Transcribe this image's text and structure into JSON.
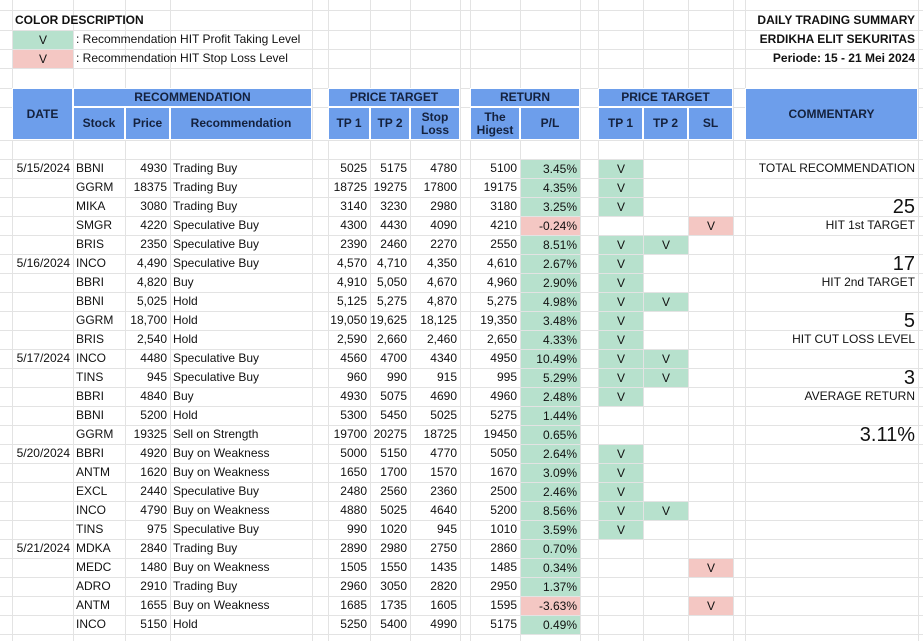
{
  "legend": {
    "title": "COLOR DESCRIPTION",
    "items": [
      {
        "mark": "V",
        "text": ": Recommendation HIT Profit Taking Level"
      },
      {
        "mark": "V",
        "text": ": Recommendation HIT Stop Loss Level"
      }
    ]
  },
  "summary": {
    "title": "DAILY TRADING SUMMARY",
    "company": "ERDIKHA ELIT SEKURITAS",
    "period": "Periode:  15 - 21 Mei 2024"
  },
  "table": {
    "headers": {
      "date": "DATE",
      "recommendation": {
        "title": "RECOMMENDATION",
        "columns": [
          "Stock",
          "Price",
          "Recommendation"
        ]
      },
      "price_target": {
        "title": "PRICE TARGET",
        "columns": [
          "TP 1",
          "TP 2",
          "Stop Loss"
        ]
      },
      "return": {
        "title": "RETURN",
        "columns": [
          "The Higest",
          "P/L"
        ]
      },
      "hit": {
        "title": "PRICE TARGET",
        "columns": [
          "TP 1",
          "TP 2",
          "SL"
        ]
      }
    },
    "rows": [
      {
        "date": "5/15/2024",
        "stock": "BBNI",
        "price": "4930",
        "recommendation": "Trading Buy",
        "tp1": "5025",
        "tp2": "5175",
        "stop": "4780",
        "highest": "5100",
        "pl": "3.45%",
        "hit_tp1": "V"
      },
      {
        "stock": "GGRM",
        "price": "18375",
        "recommendation": "Trading Buy",
        "tp1": "18725",
        "tp2": "19275",
        "stop": "17800",
        "highest": "19175",
        "pl": "4.35%",
        "hit_tp1": "V"
      },
      {
        "stock": "MIKA",
        "price": "3080",
        "recommendation": "Trading Buy",
        "tp1": "3140",
        "tp2": "3230",
        "stop": "2980",
        "highest": "3180",
        "pl": "3.25%",
        "hit_tp1": "V"
      },
      {
        "stock": "SMGR",
        "price": "4220",
        "recommendation": "Speculative Buy",
        "tp1": "4300",
        "tp2": "4430",
        "stop": "4090",
        "highest": "4210",
        "pl": "-0.24%",
        "hit_sl": "V"
      },
      {
        "stock": "BRIS",
        "price": "2350",
        "recommendation": "Speculative Buy",
        "tp1": "2390",
        "tp2": "2460",
        "stop": "2270",
        "highest": "2550",
        "pl": "8.51%",
        "hit_tp1": "V",
        "hit_tp2": "V"
      },
      {
        "date": "5/16/2024",
        "stock": "INCO",
        "price": "4,490",
        "recommendation": "Speculative Buy",
        "tp1": "4,570",
        "tp2": "4,710",
        "stop": "4,350",
        "highest": "4,610",
        "pl": "2.67%",
        "hit_tp1": "V"
      },
      {
        "stock": "BBRI",
        "price": "4,820",
        "recommendation": "Buy",
        "tp1": "4,910",
        "tp2": "5,050",
        "stop": "4,670",
        "highest": "4,960",
        "pl": "2.90%",
        "hit_tp1": "V"
      },
      {
        "stock": "BBNI",
        "price": "5,025",
        "recommendation": "Hold",
        "tp1": "5,125",
        "tp2": "5,275",
        "stop": "4,870",
        "highest": "5,275",
        "pl": "4.98%",
        "hit_tp1": "V",
        "hit_tp2": "V"
      },
      {
        "stock": "GGRM",
        "price": "18,700",
        "recommendation": "Hold",
        "tp1": "19,050",
        "tp2": "19,625",
        "stop": "18,125",
        "highest": "19,350",
        "pl": "3.48%",
        "hit_tp1": "V"
      },
      {
        "stock": "BRIS",
        "price": "2,540",
        "recommendation": "Hold",
        "tp1": "2,590",
        "tp2": "2,660",
        "stop": "2,460",
        "highest": "2,650",
        "pl": "4.33%",
        "hit_tp1": "V"
      },
      {
        "date": "5/17/2024",
        "stock": "INCO",
        "price": "4480",
        "recommendation": "Speculative Buy",
        "tp1": "4560",
        "tp2": "4700",
        "stop": "4340",
        "highest": "4950",
        "pl": "10.49%",
        "hit_tp1": "V",
        "hit_tp2": "V"
      },
      {
        "stock": "TINS",
        "price": "945",
        "recommendation": "Speculative Buy",
        "tp1": "960",
        "tp2": "990",
        "stop": "915",
        "highest": "995",
        "pl": "5.29%",
        "hit_tp1": "V",
        "hit_tp2": "V"
      },
      {
        "stock": "BBRI",
        "price": "4840",
        "recommendation": "Buy",
        "tp1": "4930",
        "tp2": "5075",
        "stop": "4690",
        "highest": "4960",
        "pl": "2.48%",
        "hit_tp1": "V"
      },
      {
        "stock": "BBNI",
        "price": "5200",
        "recommendation": "Hold",
        "tp1": "5300",
        "tp2": "5450",
        "stop": "5025",
        "highest": "5275",
        "pl": "1.44%"
      },
      {
        "stock": "GGRM",
        "price": "19325",
        "recommendation": "Sell on Strength",
        "tp1": "19700",
        "tp2": "20275",
        "stop": "18725",
        "highest": "19450",
        "pl": "0.65%"
      },
      {
        "date": "5/20/2024",
        "stock": "BBRI",
        "price": "4920",
        "recommendation": "Buy on Weakness",
        "tp1": "5000",
        "tp2": "5150",
        "stop": "4770",
        "highest": "5050",
        "pl": "2.64%",
        "hit_tp1": "V"
      },
      {
        "stock": "ANTM",
        "price": "1620",
        "recommendation": "Buy on Weakness",
        "tp1": "1650",
        "tp2": "1700",
        "stop": "1570",
        "highest": "1670",
        "pl": "3.09%",
        "hit_tp1": "V"
      },
      {
        "stock": "EXCL",
        "price": "2440",
        "recommendation": "Speculative Buy",
        "tp1": "2480",
        "tp2": "2560",
        "stop": "2360",
        "highest": "2500",
        "pl": "2.46%",
        "hit_tp1": "V"
      },
      {
        "stock": "INCO",
        "price": "4790",
        "recommendation": "Buy on Weakness",
        "tp1": "4880",
        "tp2": "5025",
        "stop": "4640",
        "highest": "5200",
        "pl": "8.56%",
        "hit_tp1": "V",
        "hit_tp2": "V"
      },
      {
        "stock": "TINS",
        "price": "975",
        "recommendation": "Speculative Buy",
        "tp1": "990",
        "tp2": "1020",
        "stop": "945",
        "highest": "1010",
        "pl": "3.59%",
        "hit_tp1": "V"
      },
      {
        "date": "5/21/2024",
        "stock": "MDKA",
        "price": "2840",
        "recommendation": "Trading Buy",
        "tp1": "2890",
        "tp2": "2980",
        "stop": "2750",
        "highest": "2860",
        "pl": "0.70%"
      },
      {
        "stock": "MEDC",
        "price": "1480",
        "recommendation": "Buy on Weakness",
        "tp1": "1505",
        "tp2": "1550",
        "stop": "1435",
        "highest": "1485",
        "pl": "0.34%",
        "hit_sl": "V"
      },
      {
        "stock": "ADRO",
        "price": "2910",
        "recommendation": "Trading Buy",
        "tp1": "2960",
        "tp2": "3050",
        "stop": "2820",
        "highest": "2950",
        "pl": "1.37%"
      },
      {
        "stock": "ANTM",
        "price": "1655",
        "recommendation": "Buy on Weakness",
        "tp1": "1685",
        "tp2": "1735",
        "stop": "1605",
        "highest": "1595",
        "pl": "-3.63%",
        "hit_sl": "V"
      },
      {
        "stock": "INCO",
        "price": "5150",
        "recommendation": "Hold",
        "tp1": "5250",
        "tp2": "5400",
        "stop": "4990",
        "highest": "5175",
        "pl": "0.49%"
      }
    ]
  },
  "commentary": {
    "title": "COMMENTARY",
    "items": [
      {
        "label": "TOTAL RECOMMENDATION",
        "value": "25"
      },
      {
        "label": "HIT 1st TARGET",
        "value": "17"
      },
      {
        "label": "HIT 2nd TARGET",
        "value": "5"
      },
      {
        "label": "HIT CUT LOSS LEVEL",
        "value": "3"
      },
      {
        "label": "AVERAGE RETURN",
        "value": "3.11%"
      }
    ]
  }
}
